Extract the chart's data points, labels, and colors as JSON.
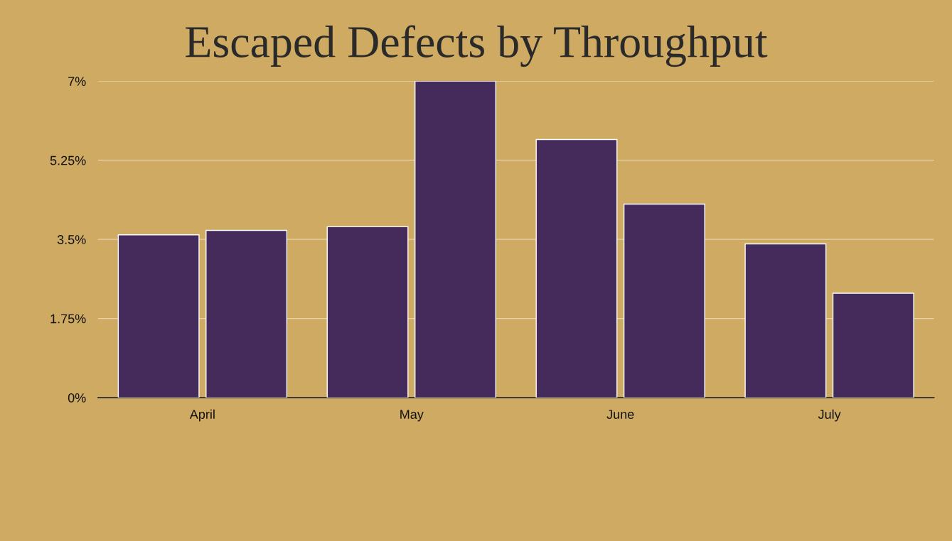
{
  "chart_data": {
    "type": "bar",
    "title": "Escaped Defects by Throughput",
    "categories": [
      "April",
      "May",
      "June",
      "July"
    ],
    "series": [
      {
        "color": "#452a5c",
        "values": [
          3.6,
          3.78,
          5.71,
          3.4
        ]
      },
      {
        "color": "#452a5c",
        "values": [
          3.7,
          7.0,
          4.28,
          2.31
        ]
      }
    ],
    "ylim": [
      0,
      7
    ],
    "yticks": [
      {
        "value": 0,
        "label": "0%"
      },
      {
        "value": 1.75,
        "label": "1.75%"
      },
      {
        "value": 3.5,
        "label": "3.5%"
      },
      {
        "value": 5.25,
        "label": "5.25%"
      },
      {
        "value": 7,
        "label": "7%"
      }
    ],
    "grid": "y",
    "legend": false
  }
}
